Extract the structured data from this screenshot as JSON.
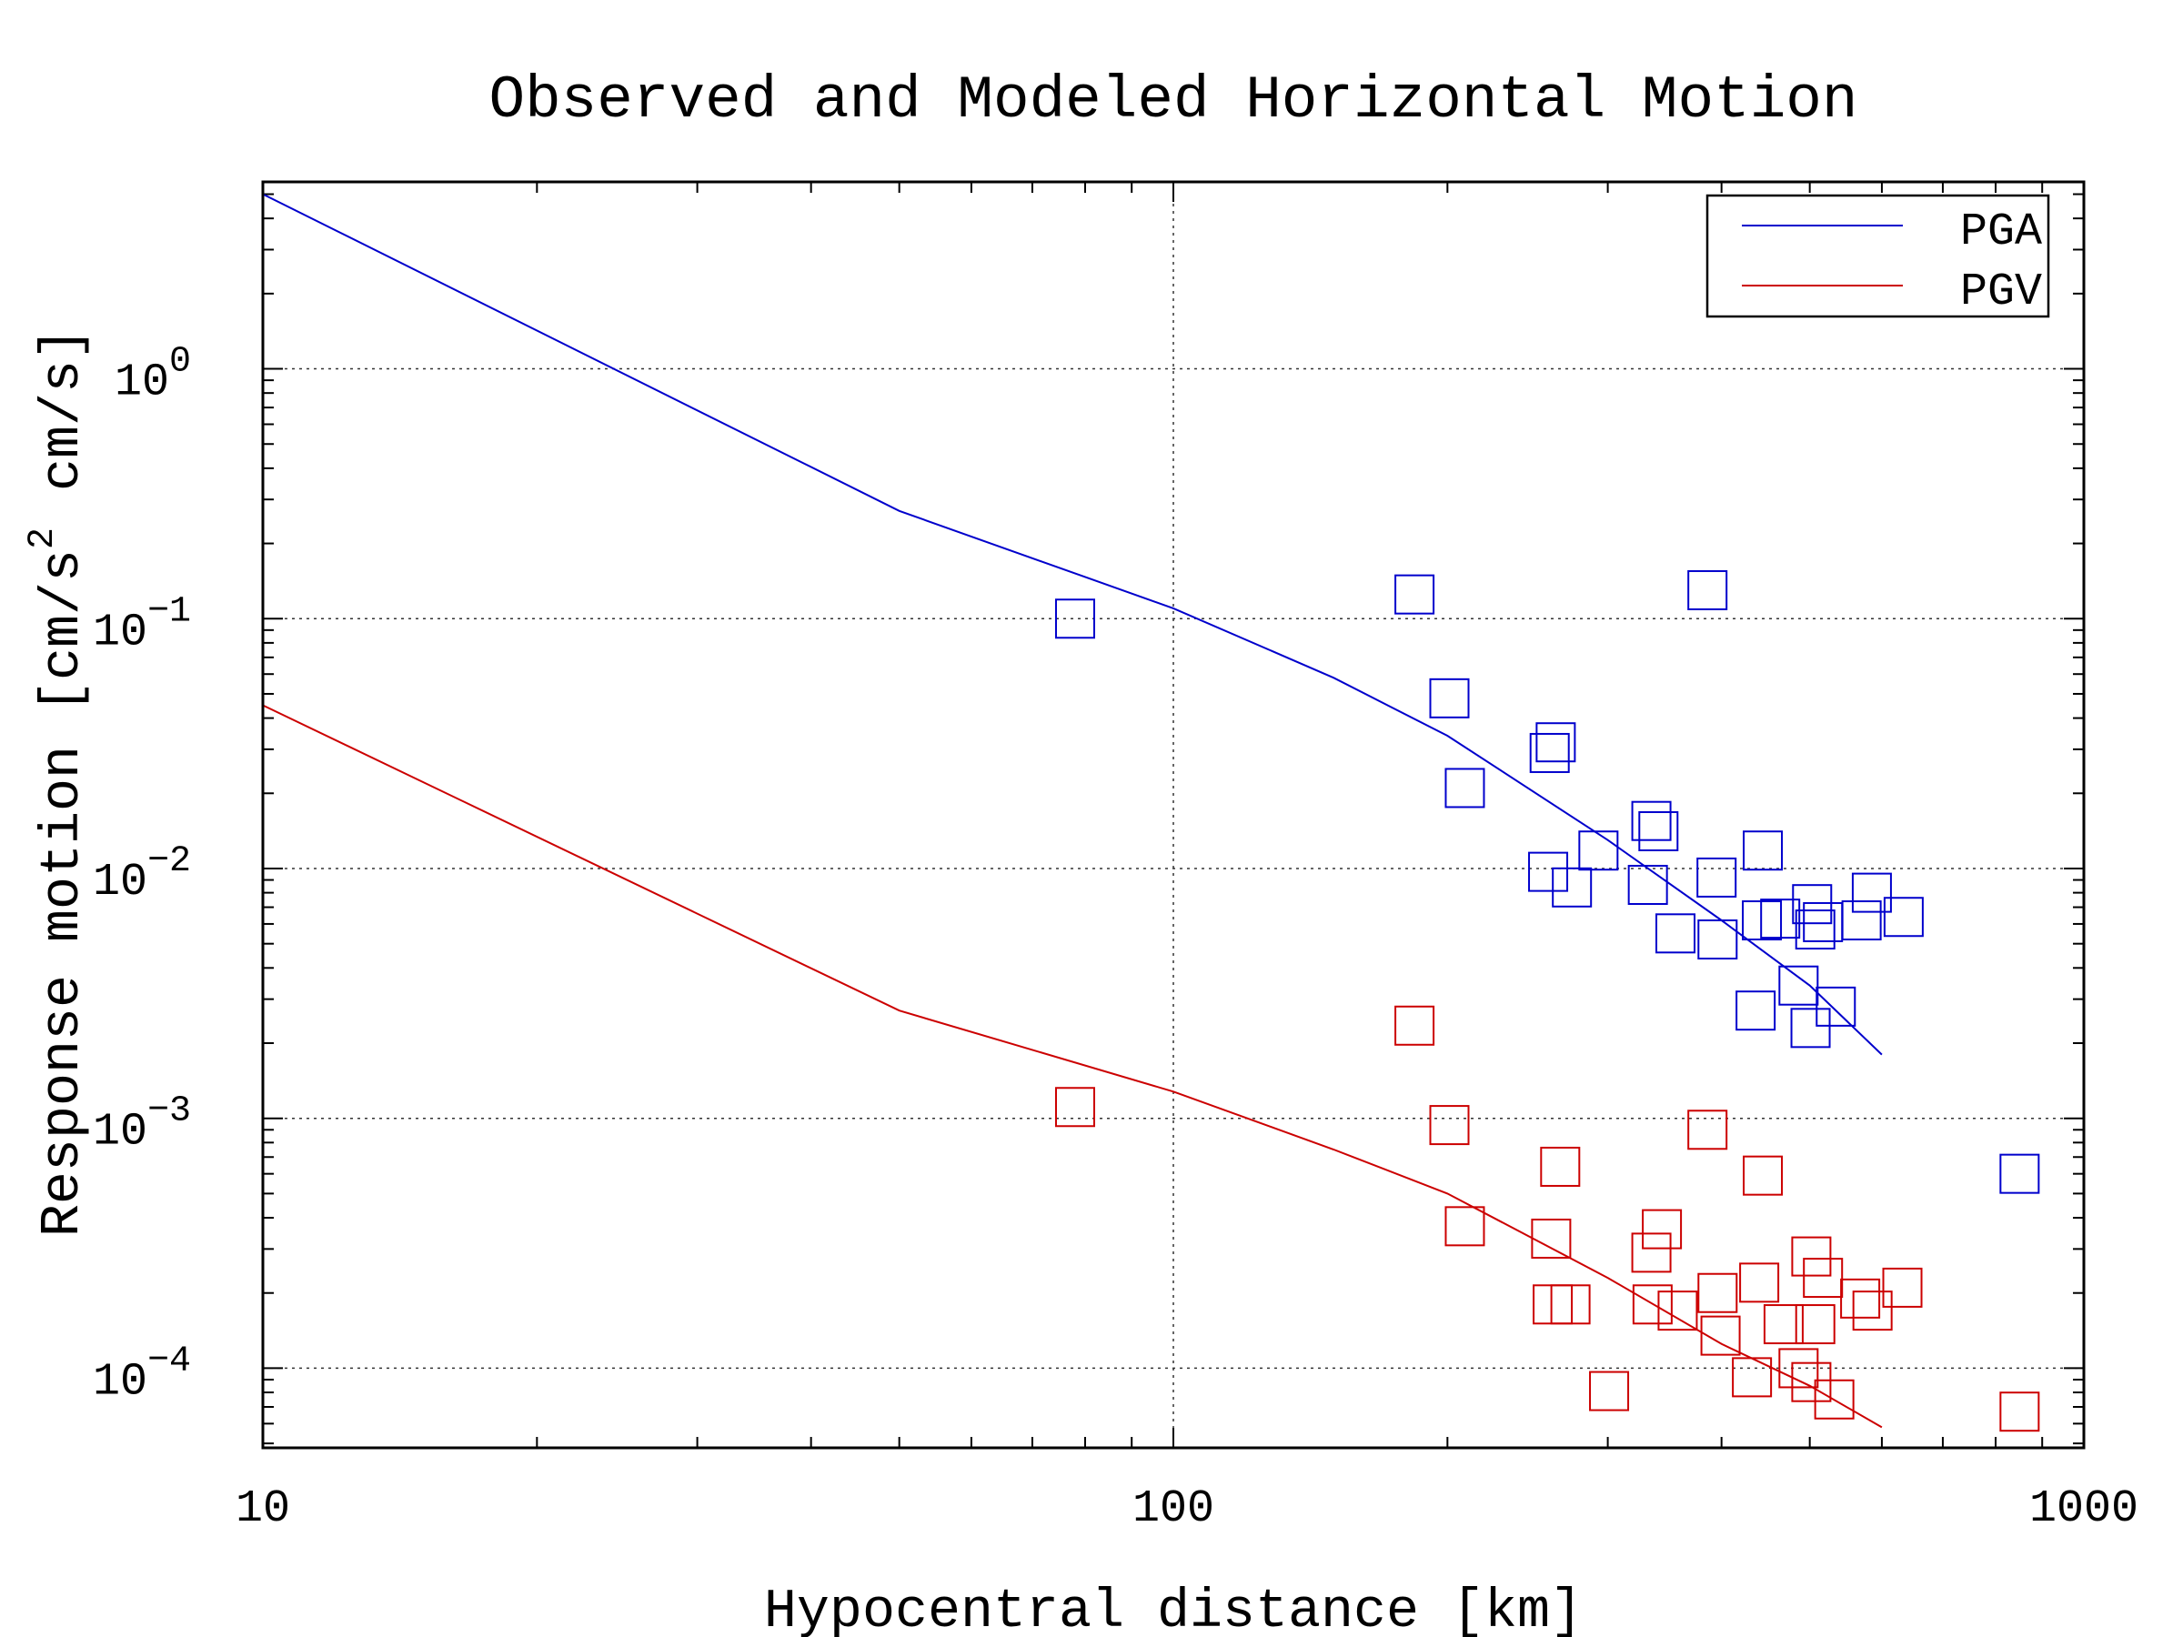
{
  "chart_data": {
    "type": "scatter",
    "title": "Observed and Modeled Horizontal Motion",
    "xlabel": "Hypocentral distance [km]",
    "ylabel": "Response motion [cm/s",
    "ylabel_sup": "2",
    "ylabel_tail": "cm/s]",
    "x_scale": "log",
    "y_scale": "log",
    "xlim": [
      10,
      1000
    ],
    "ylim": [
      4.8e-05,
      5.6
    ],
    "grid": true,
    "legend_position": "top-right",
    "x_ticks": [
      {
        "value": 10,
        "label": "10"
      },
      {
        "value": 100,
        "label": "100"
      },
      {
        "value": 1000,
        "label": "1000"
      }
    ],
    "y_ticks": [
      {
        "value": 1,
        "base": "10",
        "exp": "0"
      },
      {
        "value": 0.1,
        "base": "10",
        "exp": "−1"
      },
      {
        "value": 0.01,
        "base": "10",
        "exp": "−2"
      },
      {
        "value": 0.001,
        "base": "10",
        "exp": "−3"
      },
      {
        "value": 0.0001,
        "base": "10",
        "exp": "−4"
      }
    ],
    "series": [
      {
        "name": "PGA",
        "color": "#0000cc",
        "model_curve": [
          [
            10,
            5.0
          ],
          [
            50,
            0.27
          ],
          [
            100,
            0.11
          ],
          [
            150,
            0.058
          ],
          [
            200,
            0.034
          ],
          [
            300,
            0.013
          ],
          [
            400,
            0.0062
          ],
          [
            500,
            0.0034
          ],
          [
            600,
            0.0018
          ]
        ],
        "observations": [
          [
            78,
            0.1
          ],
          [
            184,
            0.125
          ],
          [
            201,
            0.048
          ],
          [
            209,
            0.021
          ],
          [
            259,
            0.029
          ],
          [
            263,
            0.032
          ],
          [
            258,
            0.0097
          ],
          [
            274,
            0.0084
          ],
          [
            293,
            0.0118
          ],
          [
            335,
            0.0155
          ],
          [
            341,
            0.0141
          ],
          [
            332,
            0.0086
          ],
          [
            356,
            0.0055
          ],
          [
            386,
            0.13
          ],
          [
            395,
            0.0092
          ],
          [
            396,
            0.0052
          ],
          [
            436,
            0.0027
          ],
          [
            444,
            0.0118
          ],
          [
            443,
            0.0062
          ],
          [
            464,
            0.0063
          ],
          [
            486,
            0.0034
          ],
          [
            503,
            0.0072
          ],
          [
            507,
            0.0057
          ],
          [
            517,
            0.0061
          ],
          [
            501,
            0.0023
          ],
          [
            534,
            0.0028
          ],
          [
            570,
            0.0062
          ],
          [
            585,
            0.008
          ],
          [
            634,
            0.0064
          ],
          [
            850,
            0.0006
          ]
        ]
      },
      {
        "name": "PGV",
        "color": "#cc0000",
        "model_curve": [
          [
            10,
            0.045
          ],
          [
            50,
            0.0027
          ],
          [
            100,
            0.00128
          ],
          [
            150,
            0.00075
          ],
          [
            200,
            0.0005
          ],
          [
            300,
            0.00023
          ],
          [
            400,
            0.000125
          ],
          [
            500,
            8.5e-05
          ],
          [
            600,
            5.8e-05
          ]
        ],
        "observations": [
          [
            78,
            0.00111
          ],
          [
            184,
            0.00235
          ],
          [
            201,
            0.00094
          ],
          [
            209,
            0.00037
          ],
          [
            260,
            0.00033
          ],
          [
            266,
            0.00064
          ],
          [
            261,
            0.00018
          ],
          [
            273,
            0.00018
          ],
          [
            301,
            8.1e-05
          ],
          [
            335,
            0.00029
          ],
          [
            344,
            0.00036
          ],
          [
            336,
            0.00018
          ],
          [
            358,
            0.00017
          ],
          [
            386,
            0.0009
          ],
          [
            396,
            0.0002
          ],
          [
            399,
            0.000135
          ],
          [
            432,
            9.2e-05
          ],
          [
            444,
            0.00059
          ],
          [
            440,
            0.00022
          ],
          [
            468,
            0.00015
          ],
          [
            486,
            0.0001
          ],
          [
            502,
            0.00028
          ],
          [
            502,
            8.8e-05
          ],
          [
            517,
            0.00023
          ],
          [
            507,
            0.00015
          ],
          [
            532,
            7.5e-05
          ],
          [
            568,
            0.00019
          ],
          [
            586,
            0.00017
          ],
          [
            632,
            0.00021
          ],
          [
            850,
            6.7e-05
          ]
        ]
      }
    ]
  }
}
